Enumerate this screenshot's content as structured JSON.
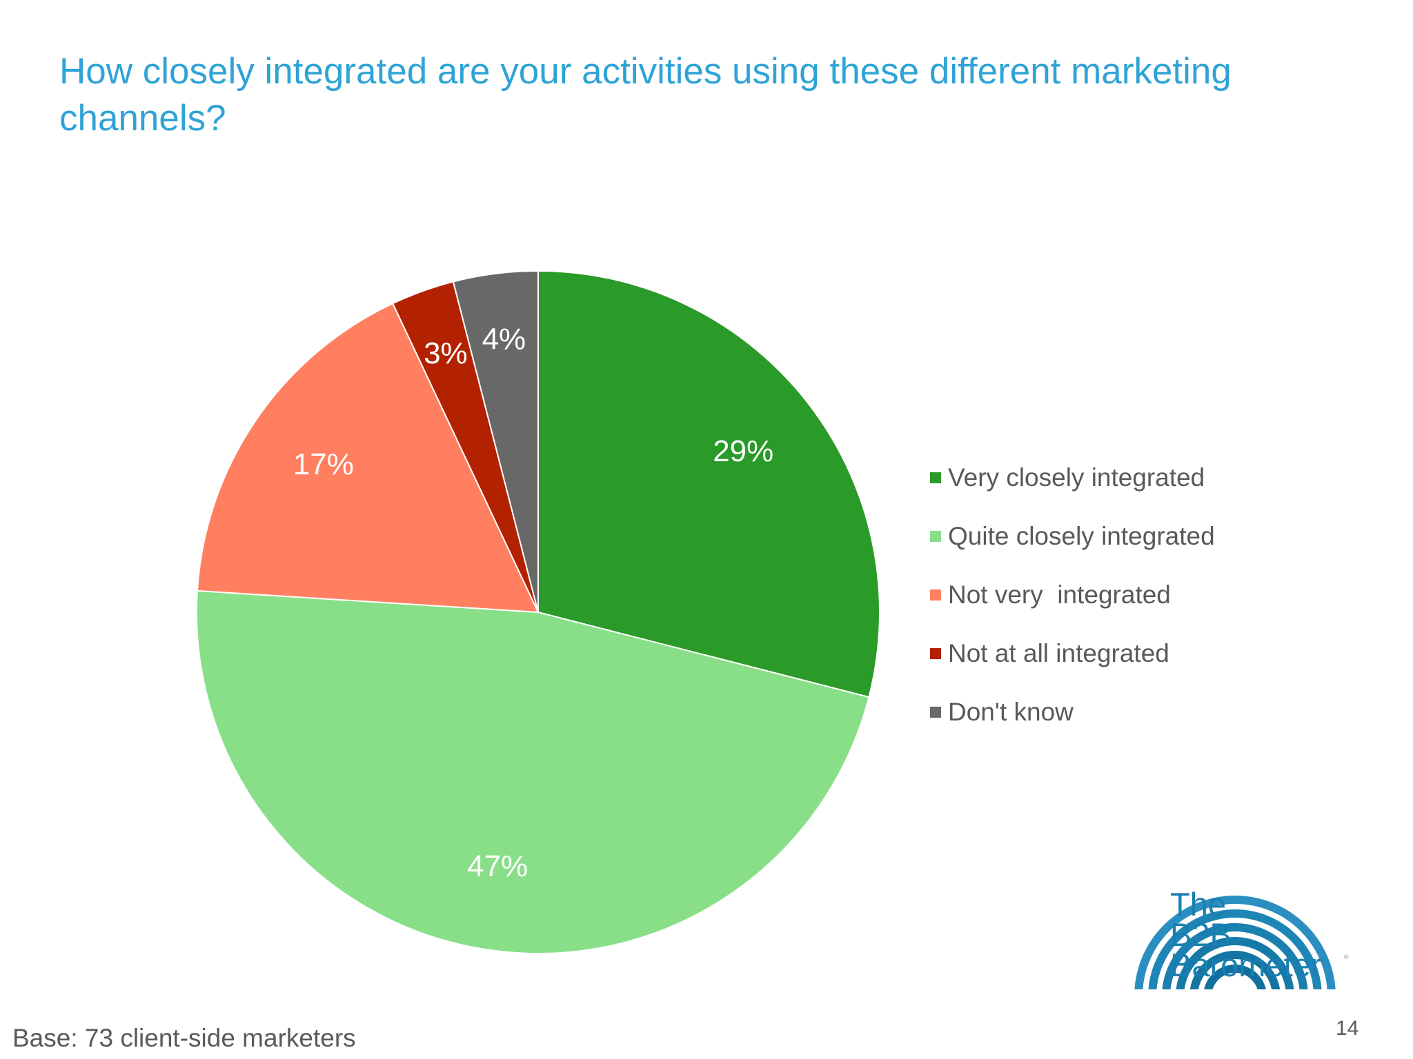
{
  "title": "How closely integrated are your activities using these different marketing channels?",
  "base_note": "Base: 73 client-side marketers",
  "page_number": "14",
  "logo": {
    "lines": [
      "The",
      "B2B",
      "Barometer"
    ],
    "mark": "®"
  },
  "colors": {
    "title": "#2ea3d6",
    "very_closely": "#2a9a28",
    "quite_closely": "#88df88",
    "not_very": "#ff7f60",
    "not_at_all": "#b22200",
    "dont_know": "#686868"
  },
  "chart_data": {
    "type": "pie",
    "title": "How closely integrated are your activities using these different marketing channels?",
    "legend_position": "right",
    "slices": [
      {
        "name": "Very closely integrated",
        "value": 29,
        "label": "29%",
        "color": "#2a9a28"
      },
      {
        "name": "Quite closely integrated",
        "value": 47,
        "label": "47%",
        "color": "#88df88"
      },
      {
        "name": "Not very  integrated",
        "value": 17,
        "label": "17%",
        "color": "#ff7f60"
      },
      {
        "name": "Not at all integrated",
        "value": 3,
        "label": "3%",
        "color": "#b22200"
      },
      {
        "name": "Don't know",
        "value": 4,
        "label": "4%",
        "color": "#686868"
      }
    ]
  }
}
